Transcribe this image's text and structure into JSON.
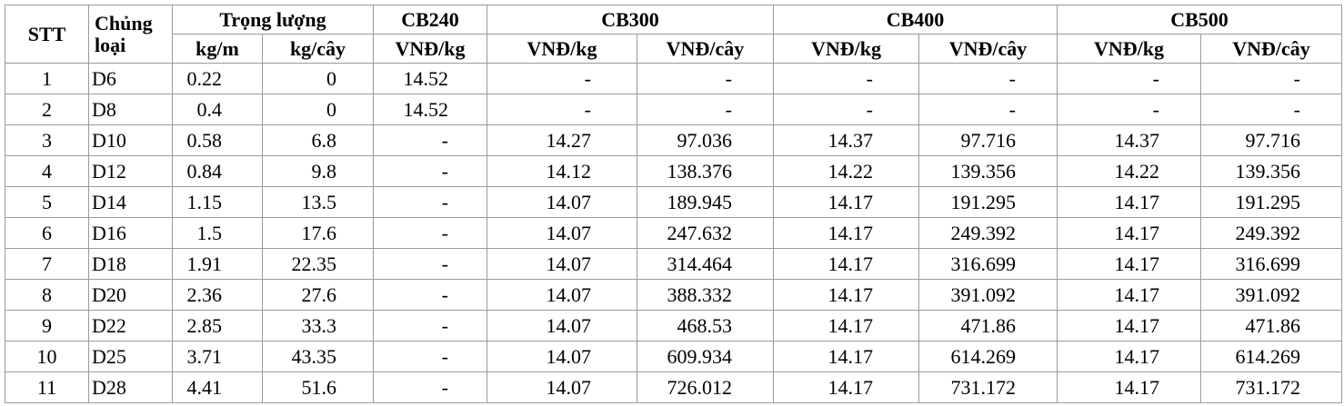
{
  "table": {
    "header_groups": [
      "STT",
      "Chủng loại",
      "Trọng lượng",
      "CB240",
      "CB300",
      "CB400",
      "CB500"
    ],
    "header_units": [
      "kg/m",
      "kg/cây",
      "VNĐ/kg",
      "VNĐ/kg",
      "VNĐ/cây",
      "VNĐ/kg",
      "VNĐ/cây",
      "VNĐ/kg",
      "VNĐ/cây"
    ],
    "rows": [
      [
        "1",
        "D6",
        "0.22",
        "0",
        "14.52",
        "-",
        "-",
        "-",
        "-",
        "-",
        "-"
      ],
      [
        "2",
        "D8",
        "0.4",
        "0",
        "14.52",
        "-",
        "-",
        "-",
        "-",
        "-",
        "-"
      ],
      [
        "3",
        "D10",
        "0.58",
        "6.8",
        "-",
        "14.27",
        "97.036",
        "14.37",
        "97.716",
        "14.37",
        "97.716"
      ],
      [
        "4",
        "D12",
        "0.84",
        "9.8",
        "-",
        "14.12",
        "138.376",
        "14.22",
        "139.356",
        "14.22",
        "139.356"
      ],
      [
        "5",
        "D14",
        "1.15",
        "13.5",
        "-",
        "14.07",
        "189.945",
        "14.17",
        "191.295",
        "14.17",
        "191.295"
      ],
      [
        "6",
        "D16",
        "1.5",
        "17.6",
        "-",
        "14.07",
        "247.632",
        "14.17",
        "249.392",
        "14.17",
        "249.392"
      ],
      [
        "7",
        "D18",
        "1.91",
        "22.35",
        "-",
        "14.07",
        "314.464",
        "14.17",
        "316.699",
        "14.17",
        "316.699"
      ],
      [
        "8",
        "D20",
        "2.36",
        "27.6",
        "-",
        "14.07",
        "388.332",
        "14.17",
        "391.092",
        "14.17",
        "391.092"
      ],
      [
        "9",
        "D22",
        "2.85",
        "33.3",
        "-",
        "14.07",
        "468.53",
        "14.17",
        "471.86",
        "14.17",
        "471.86"
      ],
      [
        "10",
        "D25",
        "3.71",
        "43.35",
        "-",
        "14.07",
        "609.934",
        "14.17",
        "614.269",
        "14.17",
        "614.269"
      ],
      [
        "11",
        "D28",
        "4.41",
        "51.6",
        "-",
        "14.07",
        "726.012",
        "14.17",
        "731.172",
        "14.17",
        "731.172"
      ]
    ]
  }
}
